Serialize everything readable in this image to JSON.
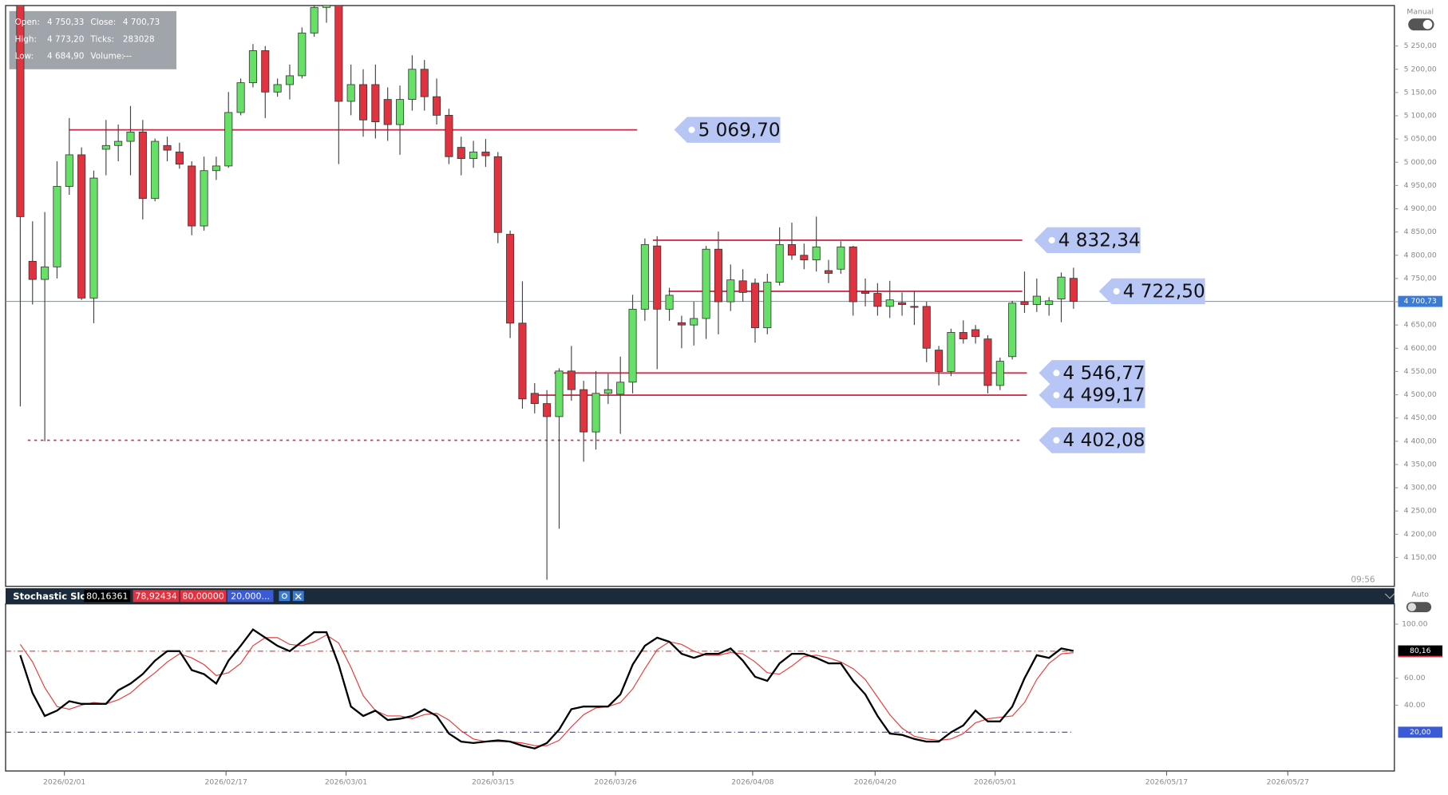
{
  "chart_data": [
    {
      "type": "candlestick",
      "up_color": "#66e066",
      "down_color": "#e0333f",
      "open": [
        5360,
        4787,
        4748,
        4775,
        4948,
        5016,
        4708,
        5028,
        5036,
        5045,
        5065,
        4922,
        5036,
        5022,
        4992,
        4863,
        4982,
        4992,
        5107,
        5171,
        5240,
        5151,
        5167,
        5186,
        5278,
        5333,
        5380,
        5131,
        5167,
        5167,
        5135,
        5081,
        5135,
        5200,
        5141,
        5101,
        5032,
        5008,
        5022,
        5012,
        4845,
        4654,
        4503,
        4481,
        4453,
        4551,
        4511,
        4420,
        4503,
        4501,
        4527,
        4684,
        4820,
        4684,
        4655,
        4650,
        4664,
        4813,
        4700,
        4745,
        4740,
        4644,
        4742,
        4823,
        4800,
        4790,
        4767,
        4770,
        4818,
        4722,
        4718,
        4690,
        4698,
        4690,
        4690,
        4596,
        4550,
        4634,
        4640,
        4620,
        4520,
        4582,
        4700,
        4694,
        4694,
        4706,
        4750.33
      ],
      "high": [
        5400,
        4873,
        4893,
        5002,
        5095,
        5032,
        4982,
        5091,
        5081,
        5121,
        5091,
        5051,
        5055,
        5042,
        5002,
        5012,
        5012,
        5151,
        5180,
        5254,
        5250,
        5180,
        5210,
        5290,
        5345,
        5420,
        5420,
        5210,
        5200,
        5210,
        5161,
        5165,
        5230,
        5220,
        5180,
        5115,
        5055,
        5046,
        5050,
        5022,
        4853,
        4744,
        4525,
        4510,
        4557,
        4605,
        4530,
        4551,
        4545,
        4582,
        4715,
        4836,
        4841,
        4730,
        4670,
        4700,
        4820,
        4851,
        4780,
        4770,
        4750,
        4760,
        4860,
        4870,
        4825,
        4883,
        4790,
        4830,
        4820,
        4750,
        4740,
        4745,
        4720,
        4722,
        4700,
        4605,
        4642,
        4660,
        4650,
        4628,
        4580,
        4702,
        4765,
        4750,
        4710,
        4763,
        4773.2
      ],
      "low": [
        4475,
        4694,
        4400,
        4750,
        4930,
        4704,
        4654,
        4972,
        5002,
        4972,
        4877,
        4916,
        5002,
        4986,
        4843,
        4853,
        4962,
        4988,
        5101,
        5161,
        5095,
        5141,
        5135,
        5180,
        5270,
        5300,
        4996,
        5101,
        5055,
        5051,
        5046,
        5016,
        5111,
        5111,
        5081,
        4996,
        4972,
        4988,
        4990,
        4826,
        4622,
        4470,
        4460,
        4102,
        4212,
        4487,
        4356,
        4382,
        4480,
        4416,
        4503,
        4659,
        4555,
        4659,
        4600,
        4606,
        4620,
        4630,
        4680,
        4700,
        4612,
        4630,
        4735,
        4790,
        4770,
        4765,
        4740,
        4760,
        4670,
        4690,
        4670,
        4665,
        4670,
        4650,
        4570,
        4520,
        4540,
        4610,
        4610,
        4503,
        4510,
        4576,
        4676,
        4678,
        4670,
        4656,
        4684.9
      ],
      "close": [
        4883,
        4748,
        4775,
        4948,
        5016,
        4708,
        4966,
        5036,
        5045,
        5065,
        4922,
        5045,
        5026,
        4996,
        4863,
        4982,
        4992,
        5107,
        5171,
        5240,
        5151,
        5167,
        5186,
        5278,
        5333,
        5380,
        5131,
        5167,
        5091,
        5087,
        5081,
        5135,
        5200,
        5141,
        5101,
        5012,
        5008,
        5022,
        5014,
        4849,
        4654,
        4491,
        4481,
        4453,
        4551,
        4511,
        4420,
        4503,
        4511,
        4527,
        4684,
        4823,
        4684,
        4714,
        4650,
        4664,
        4813,
        4700,
        4747,
        4720,
        4644,
        4742,
        4823,
        4800,
        4790,
        4818,
        4761,
        4818,
        4700,
        4718,
        4690,
        4704,
        4694,
        4688,
        4600,
        4550,
        4634,
        4620,
        4625,
        4520,
        4572,
        4697,
        4694,
        4712,
        4702,
        4753,
        4700.73
      ],
      "xlim": [
        -1.2,
        112.2
      ],
      "ylim": [
        4088,
        5337
      ],
      "yticks": [
        {
          "value": 4150,
          "label": "4 150,00"
        },
        {
          "value": 4200,
          "label": "4 200,00"
        },
        {
          "value": 4250,
          "label": "4 250,00"
        },
        {
          "value": 4300,
          "label": "4 300,00"
        },
        {
          "value": 4350,
          "label": "4 350,00"
        },
        {
          "value": 4400,
          "label": "4 400,00"
        },
        {
          "value": 4450,
          "label": "4 450,00"
        },
        {
          "value": 4500,
          "label": "4 500,00"
        },
        {
          "value": 4550,
          "label": "4 550,00"
        },
        {
          "value": 4600,
          "label": "4 600,00"
        },
        {
          "value": 4650,
          "label": "4 650,00"
        },
        {
          "value": 4700,
          "label": "4 700,00"
        },
        {
          "value": 4750,
          "label": "4 750,00"
        },
        {
          "value": 4800,
          "label": "4 800,00"
        },
        {
          "value": 4850,
          "label": "4 850,00"
        },
        {
          "value": 4900,
          "label": "4 900,00"
        },
        {
          "value": 4950,
          "label": "4 950,00"
        },
        {
          "value": 5000,
          "label": "5 000,00"
        },
        {
          "value": 5050,
          "label": "5 050,00"
        },
        {
          "value": 5100,
          "label": "5 100,00"
        },
        {
          "value": 5150,
          "label": "5 150,00"
        },
        {
          "value": 5200,
          "label": "5 200,00"
        },
        {
          "value": 5250,
          "label": "5 250,00"
        }
      ],
      "levels": [
        {
          "value": 5069.7,
          "label": "5 069,70",
          "style": "solid"
        },
        {
          "value": 4832.34,
          "label": "4 832,34",
          "style": "solid"
        },
        {
          "value": 4722.5,
          "label": "4 722,50",
          "style": "solid"
        },
        {
          "value": 4546.77,
          "label": "4 546,77",
          "style": "solid"
        },
        {
          "value": 4499.17,
          "label": "4 499,17",
          "style": "solid"
        },
        {
          "value": 4402.08,
          "label": "4 402,08",
          "style": "dotted"
        }
      ],
      "level_color": "#d0304a",
      "current_price": {
        "value": 4700.73,
        "label": "4 700,73"
      },
      "info": [
        {
          "label": "Open:",
          "value": "4 750,33"
        },
        {
          "label": "Close:",
          "value": "4 700,73"
        },
        {
          "label": "High:",
          "value": "4 773,20"
        },
        {
          "label": "Ticks:",
          "value": "283028"
        },
        {
          "label": "Low:",
          "value": "4 684,90"
        },
        {
          "label": "Volume:",
          "value": "---"
        }
      ],
      "mode": "Manual",
      "time": "09:56"
    },
    {
      "type": "line",
      "title": "Stochastic Slow",
      "header_values": [
        "80,16361",
        "78,92434",
        "80,00000",
        "20,000..."
      ],
      "series": [
        {
          "color": "#000000",
          "values": [
            77,
            49,
            32,
            36,
            43,
            41,
            41,
            41,
            51,
            56,
            63,
            73,
            80,
            80,
            66,
            63,
            56,
            73,
            84,
            96,
            90,
            84,
            80,
            87,
            94,
            94,
            70,
            39,
            32,
            36,
            29,
            30,
            32,
            37,
            32,
            19,
            13,
            12,
            13,
            14,
            13,
            10,
            8,
            12,
            22,
            37,
            39,
            39,
            39,
            48,
            70,
            84,
            90,
            87,
            78,
            75,
            78,
            78,
            82,
            73,
            61,
            58,
            71,
            78,
            78,
            75,
            71,
            71,
            58,
            48,
            32,
            19,
            18,
            15,
            13,
            13,
            20,
            25,
            36,
            28,
            28,
            39,
            60,
            77,
            75,
            82,
            80.16
          ]
        },
        {
          "color": "#e83a3a",
          "values": [
            85,
            72,
            53,
            39,
            37,
            40,
            42,
            41,
            44,
            49,
            57,
            64,
            72,
            78,
            75,
            70,
            62,
            64,
            71,
            84,
            90,
            90,
            85,
            84,
            87,
            92,
            86,
            68,
            47,
            36,
            32,
            32,
            30,
            33,
            34,
            29,
            21,
            15,
            13,
            13,
            13,
            12,
            10,
            10,
            14,
            24,
            33,
            38,
            39,
            42,
            52,
            67,
            81,
            87,
            85,
            80,
            77,
            77,
            79,
            78,
            72,
            64,
            63,
            69,
            76,
            77,
            75,
            72,
            67,
            59,
            46,
            33,
            23,
            17,
            15,
            14,
            15,
            19,
            27,
            30,
            31,
            32,
            42,
            59,
            71,
            78,
            78.92
          ]
        }
      ],
      "last_value_label": "80,16",
      "xlim": [
        -1.2,
        112.2
      ],
      "ylim": [
        -8.7,
        115
      ],
      "yticks": [
        {
          "value": 100,
          "label": "100.00"
        },
        {
          "value": 60,
          "label": "60.00"
        },
        {
          "value": 40,
          "label": "40.00"
        }
      ],
      "levels": [
        {
          "value": 80,
          "color": "#d04040"
        },
        {
          "value": 20,
          "color": "#3040d0",
          "label": "20,00"
        }
      ],
      "xticks": [
        {
          "value": 3.6,
          "label": "2026/02/01"
        },
        {
          "value": 16.8,
          "label": "2026/02/17"
        },
        {
          "value": 26.6,
          "label": "2026/03/01"
        },
        {
          "value": 38.6,
          "label": "2026/03/15"
        },
        {
          "value": 48.6,
          "label": "2026/03/26"
        },
        {
          "value": 59.8,
          "label": "2026/04/08"
        },
        {
          "value": 69.8,
          "label": "2026/04/20"
        },
        {
          "value": 79.6,
          "label": "2026/05/01"
        },
        {
          "value": 93.6,
          "label": "2026/05/17"
        },
        {
          "value": 103.5,
          "label": "2026/05/27"
        }
      ],
      "mode": "Auto"
    }
  ]
}
